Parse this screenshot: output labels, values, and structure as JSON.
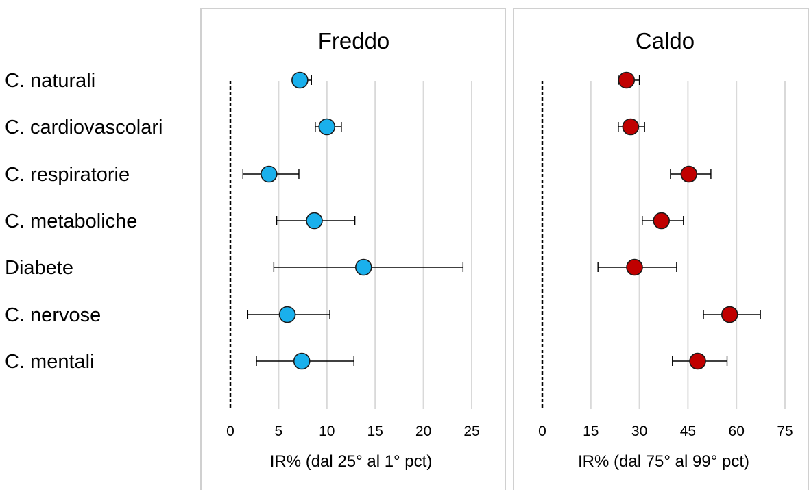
{
  "colors": {
    "cold": "#1ab0ec",
    "hot": "#c00000",
    "grid": "#d9d9d9",
    "frame": "#d0d0d0",
    "marker_stroke": "#1a1a1a"
  },
  "chart_data": {
    "type": "scatter",
    "categories": [
      "C. naturali",
      "C. cardiovascolari",
      "C. respiratorie",
      "C. metaboliche",
      "Diabete",
      "C. nervose",
      "C. mentali"
    ],
    "panels": [
      {
        "title": "Freddo",
        "xlabel": "IR% (dal 25° al 1° pct)",
        "xlim": [
          0,
          25
        ],
        "ticks": [
          0,
          5,
          10,
          15,
          20,
          25
        ],
        "grid": true,
        "reference_line": 0,
        "series_color": "cold",
        "values": [
          7.2,
          10.0,
          4.0,
          8.7,
          13.8,
          5.9,
          7.4
        ],
        "ci_low": [
          6.5,
          8.8,
          1.3,
          4.8,
          4.5,
          1.8,
          2.7
        ],
        "ci_high": [
          8.4,
          11.5,
          7.1,
          12.9,
          24.1,
          10.3,
          12.8
        ]
      },
      {
        "title": "Caldo",
        "xlabel": "IR% (dal 75° al 99° pct)",
        "xlim": [
          0,
          75
        ],
        "ticks": [
          0,
          15,
          30,
          45,
          60,
          75
        ],
        "grid": true,
        "reference_line": 0,
        "series_color": "hot",
        "values": [
          26.0,
          27.3,
          45.3,
          36.8,
          28.5,
          57.9,
          48.0
        ],
        "ci_low": [
          23.5,
          23.5,
          39.6,
          30.9,
          17.2,
          49.8,
          40.2
        ],
        "ci_high": [
          30.0,
          31.6,
          52.1,
          43.6,
          41.5,
          67.4,
          57.1
        ]
      }
    ]
  }
}
